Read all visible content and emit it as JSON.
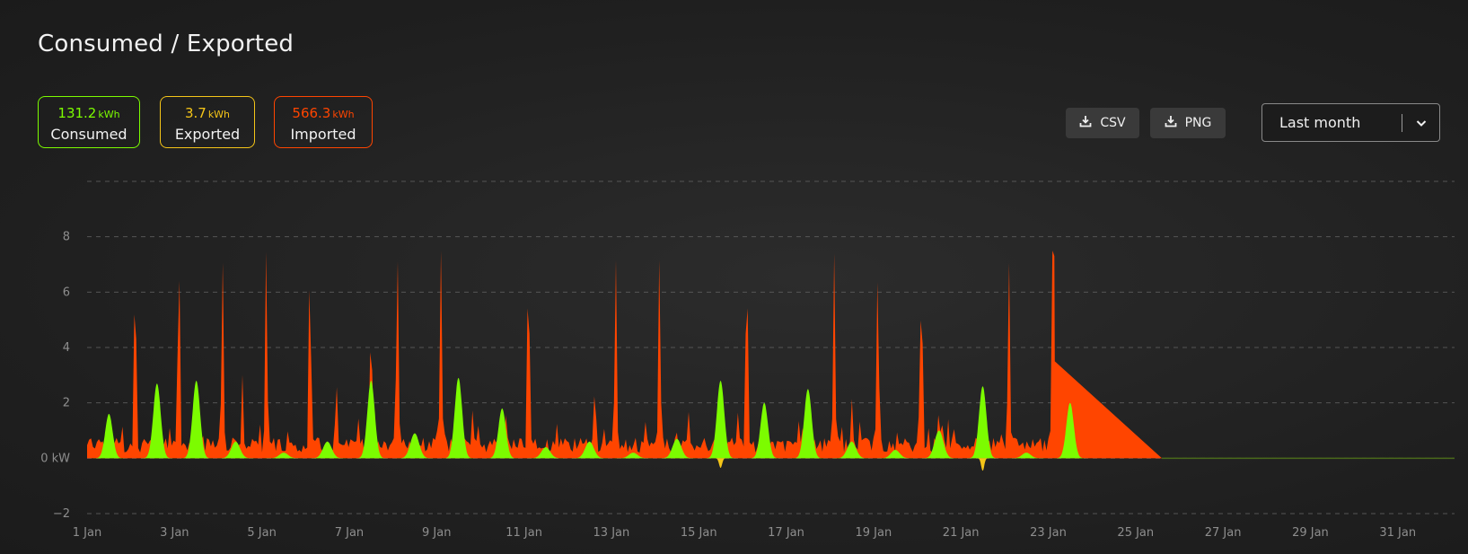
{
  "title": "Consumed / Exported",
  "stats": [
    {
      "value": "131.2",
      "unit": "kWh",
      "label": "Consumed",
      "color": "#7CFC00"
    },
    {
      "value": "3.7",
      "unit": "kWh",
      "label": "Exported",
      "color": "#F5C518"
    },
    {
      "value": "566.3",
      "unit": "kWh",
      "label": "Imported",
      "color": "#FF4500"
    }
  ],
  "toolbar": {
    "csv_label": "CSV",
    "png_label": "PNG"
  },
  "range_select": {
    "value": "Last month"
  },
  "colors": {
    "consumed": "#7CFC00",
    "exported": "#F5C518",
    "imported": "#FF4500",
    "grid": "#555555"
  },
  "icons": {
    "download": "download-icon",
    "dropdown": "chevron-down-icon"
  },
  "chart_data": {
    "type": "area",
    "ylim": [
      -2,
      10
    ],
    "yticks": [
      8,
      6,
      4,
      2,
      0,
      -2
    ],
    "ytick_labels": [
      "8",
      "6",
      "4",
      "2",
      "0 kW",
      "−2"
    ],
    "xlim": [
      1,
      32.3
    ],
    "xticks": [
      1,
      3,
      5,
      7,
      9,
      11,
      13,
      15,
      17,
      19,
      21,
      23,
      25,
      27,
      29,
      31
    ],
    "xtick_labels": [
      "1 Jan",
      "3 Jan",
      "5 Jan",
      "7 Jan",
      "9 Jan",
      "11 Jan",
      "13 Jan",
      "15 Jan",
      "17 Jan",
      "19 Jan",
      "21 Jan",
      "23 Jan",
      "25 Jan",
      "27 Jan",
      "29 Jan",
      "31 Jan"
    ],
    "grid": true,
    "series": [
      {
        "name": "Imported",
        "color": "#FF4500",
        "baseline": 0.5,
        "peaks": [
          {
            "x": 2.1,
            "y": 7.2
          },
          {
            "x": 3.1,
            "y": 7.7
          },
          {
            "x": 4.1,
            "y": 7.2
          },
          {
            "x": 4.55,
            "y": 3.1
          },
          {
            "x": 5.1,
            "y": 7.6
          },
          {
            "x": 6.1,
            "y": 7.3
          },
          {
            "x": 6.7,
            "y": 3.3
          },
          {
            "x": 7.5,
            "y": 5.3
          },
          {
            "x": 8.1,
            "y": 7.7
          },
          {
            "x": 9.1,
            "y": 7.5
          },
          {
            "x": 10.6,
            "y": 2.0
          },
          {
            "x": 11.1,
            "y": 7.5
          },
          {
            "x": 12.6,
            "y": 2.5
          },
          {
            "x": 13.1,
            "y": 7.3
          },
          {
            "x": 14.1,
            "y": 7.3
          },
          {
            "x": 16.1,
            "y": 7.5
          },
          {
            "x": 18.1,
            "y": 7.4
          },
          {
            "x": 18.5,
            "y": 2.2
          },
          {
            "x": 19.1,
            "y": 6.9
          },
          {
            "x": 20.1,
            "y": 6.9
          },
          {
            "x": 20.5,
            "y": 2.0
          },
          {
            "x": 22.1,
            "y": 7.2
          },
          {
            "x": 23.1,
            "y": 7.5
          }
        ],
        "ramp": [
          {
            "x": 23.1,
            "y": 3.5
          },
          {
            "x": 25.6,
            "y": 0
          }
        ]
      },
      {
        "name": "Consumed",
        "color": "#7CFC00",
        "peaks": [
          {
            "x": 1.5,
            "y": 1.6
          },
          {
            "x": 2.6,
            "y": 2.7
          },
          {
            "x": 3.5,
            "y": 2.8
          },
          {
            "x": 4.4,
            "y": 0.6
          },
          {
            "x": 5.5,
            "y": 0.2
          },
          {
            "x": 6.5,
            "y": 0.6
          },
          {
            "x": 7.5,
            "y": 2.8
          },
          {
            "x": 8.5,
            "y": 0.9
          },
          {
            "x": 9.5,
            "y": 2.9
          },
          {
            "x": 10.5,
            "y": 1.8
          },
          {
            "x": 11.5,
            "y": 0.4
          },
          {
            "x": 12.5,
            "y": 0.6
          },
          {
            "x": 13.5,
            "y": 0.2
          },
          {
            "x": 14.5,
            "y": 0.7
          },
          {
            "x": 15.5,
            "y": 2.8
          },
          {
            "x": 16.5,
            "y": 2.0
          },
          {
            "x": 17.5,
            "y": 2.5
          },
          {
            "x": 18.5,
            "y": 0.6
          },
          {
            "x": 19.5,
            "y": 0.3
          },
          {
            "x": 20.5,
            "y": 1.0
          },
          {
            "x": 21.5,
            "y": 2.6
          },
          {
            "x": 22.5,
            "y": 0.2
          },
          {
            "x": 23.5,
            "y": 2.0
          }
        ]
      },
      {
        "name": "Exported",
        "color": "#F5C518",
        "peaks": [
          {
            "x": 15.5,
            "y": -0.35
          },
          {
            "x": 21.5,
            "y": -0.45
          }
        ]
      }
    ]
  }
}
